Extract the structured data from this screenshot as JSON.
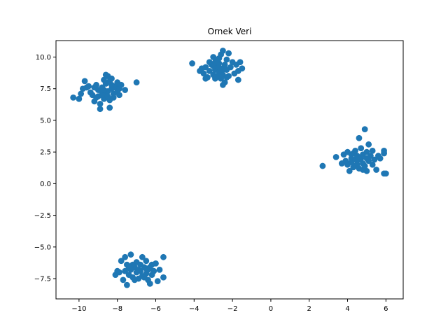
{
  "chart_data": {
    "type": "scatter",
    "title": "Ornek Veri",
    "xlabel": "",
    "ylabel": "",
    "xlim": [
      -11.2,
      6.9
    ],
    "ylim": [
      -9.1,
      11.3
    ],
    "x_ticks": [
      -10,
      -8,
      -6,
      -4,
      -2,
      0,
      2,
      4,
      6
    ],
    "x_tick_labels": [
      "−10",
      "−8",
      "−6",
      "−4",
      "−2",
      "0",
      "2",
      "4",
      "6"
    ],
    "y_ticks": [
      -7.5,
      -5.0,
      -2.5,
      0.0,
      2.5,
      5.0,
      7.5,
      10.0
    ],
    "y_tick_labels": [
      "−7.5",
      "−5.0",
      "−2.5",
      "0.0",
      "2.5",
      "5.0",
      "7.5",
      "10.0"
    ],
    "grid": false,
    "marker_color": "#1f77b4",
    "series": [
      {
        "points": [
          [
            -10.3,
            6.8
          ],
          [
            -10.0,
            6.7
          ],
          [
            -9.9,
            7.1
          ],
          [
            -9.8,
            7.5
          ],
          [
            -9.7,
            8.1
          ],
          [
            -9.6,
            7.6
          ],
          [
            -9.4,
            7.2
          ],
          [
            -9.3,
            7.0
          ],
          [
            -9.2,
            6.5
          ],
          [
            -9.2,
            7.6
          ],
          [
            -9.1,
            7.8
          ],
          [
            -9.0,
            7.4
          ],
          [
            -9.0,
            6.9
          ],
          [
            -8.9,
            6.3
          ],
          [
            -8.8,
            7.2
          ],
          [
            -8.8,
            7.6
          ],
          [
            -8.7,
            8.2
          ],
          [
            -8.7,
            6.7
          ],
          [
            -8.6,
            7.0
          ],
          [
            -8.6,
            7.9
          ],
          [
            -8.5,
            8.5
          ],
          [
            -8.5,
            7.3
          ],
          [
            -8.4,
            6.6
          ],
          [
            -8.4,
            8.1
          ],
          [
            -8.3,
            7.5
          ],
          [
            -8.3,
            8.3
          ],
          [
            -8.2,
            7.1
          ],
          [
            -8.2,
            6.8
          ],
          [
            -8.1,
            7.7
          ],
          [
            -8.0,
            7.3
          ],
          [
            -7.9,
            7.5
          ],
          [
            -7.9,
            7.0
          ],
          [
            -7.8,
            7.8
          ],
          [
            -7.6,
            7.4
          ],
          [
            -8.4,
            6.0
          ],
          [
            -8.9,
            5.9
          ],
          [
            -7.0,
            8.0
          ],
          [
            -8.6,
            8.6
          ],
          [
            -8.3,
            7.8
          ],
          [
            -8.8,
            7.0
          ],
          [
            -9.5,
            7.7
          ],
          [
            -8.0,
            8.0
          ],
          [
            -8.5,
            6.9
          ],
          [
            -8.7,
            7.4
          ],
          [
            -9.1,
            6.8
          ],
          [
            -8.2,
            7.6
          ]
        ]
      },
      {
        "points": [
          [
            -4.1,
            9.5
          ],
          [
            -3.7,
            8.9
          ],
          [
            -3.6,
            9.1
          ],
          [
            -3.5,
            8.7
          ],
          [
            -3.4,
            9.2
          ],
          [
            -3.3,
            8.4
          ],
          [
            -3.2,
            9.6
          ],
          [
            -3.2,
            8.9
          ],
          [
            -3.1,
            9.4
          ],
          [
            -3.0,
            8.6
          ],
          [
            -3.0,
            10.0
          ],
          [
            -2.9,
            9.0
          ],
          [
            -2.9,
            8.3
          ],
          [
            -2.8,
            9.8
          ],
          [
            -2.8,
            9.3
          ],
          [
            -2.7,
            8.8
          ],
          [
            -2.7,
            9.5
          ],
          [
            -2.6,
            10.2
          ],
          [
            -2.6,
            9.1
          ],
          [
            -2.5,
            8.6
          ],
          [
            -2.5,
            10.5
          ],
          [
            -2.4,
            9.4
          ],
          [
            -2.4,
            8.0
          ],
          [
            -2.3,
            9.8
          ],
          [
            -2.3,
            9.0
          ],
          [
            -2.2,
            8.5
          ],
          [
            -2.2,
            10.3
          ],
          [
            -2.1,
            9.2
          ],
          [
            -2.0,
            9.6
          ],
          [
            -1.9,
            8.7
          ],
          [
            -1.8,
            9.4
          ],
          [
            -1.7,
            8.9
          ],
          [
            -1.7,
            8.2
          ],
          [
            -1.6,
            9.6
          ],
          [
            -1.5,
            9.1
          ],
          [
            -3.4,
            8.3
          ],
          [
            -2.5,
            7.8
          ],
          [
            -2.6,
            8.3
          ],
          [
            -2.7,
            9.9
          ],
          [
            -3.0,
            9.3
          ],
          [
            -2.3,
            8.4
          ],
          [
            -2.9,
            9.6
          ],
          [
            -2.5,
            9.0
          ],
          [
            -2.8,
            8.5
          ]
        ]
      },
      {
        "points": [
          [
            2.7,
            1.4
          ],
          [
            3.4,
            2.1
          ],
          [
            3.7,
            1.6
          ],
          [
            3.8,
            2.3
          ],
          [
            3.9,
            1.8
          ],
          [
            4.0,
            2.5
          ],
          [
            4.0,
            1.5
          ],
          [
            4.1,
            1.0
          ],
          [
            4.2,
            2.0
          ],
          [
            4.2,
            1.7
          ],
          [
            4.3,
            2.4
          ],
          [
            4.3,
            1.3
          ],
          [
            4.4,
            1.9
          ],
          [
            4.4,
            2.6
          ],
          [
            4.5,
            1.5
          ],
          [
            4.5,
            2.2
          ],
          [
            4.6,
            3.6
          ],
          [
            4.6,
            1.2
          ],
          [
            4.7,
            2.0
          ],
          [
            4.7,
            2.8
          ],
          [
            4.8,
            1.6
          ],
          [
            4.8,
            2.3
          ],
          [
            4.9,
            1.4
          ],
          [
            4.9,
            4.3
          ],
          [
            5.0,
            2.5
          ],
          [
            5.0,
            1.0
          ],
          [
            5.1,
            1.8
          ],
          [
            5.1,
            3.1
          ],
          [
            5.2,
            2.2
          ],
          [
            5.3,
            1.5
          ],
          [
            5.3,
            2.6
          ],
          [
            5.4,
            1.9
          ],
          [
            5.5,
            1.1
          ],
          [
            5.6,
            2.2
          ],
          [
            5.7,
            2.0
          ],
          [
            5.9,
            2.4
          ],
          [
            5.9,
            2.6
          ],
          [
            5.9,
            0.8
          ],
          [
            6.0,
            0.8
          ],
          [
            4.4,
            1.4
          ],
          [
            4.6,
            1.9
          ],
          [
            4.2,
            2.3
          ],
          [
            5.0,
            2.0
          ],
          [
            4.8,
            1.1
          ]
        ]
      },
      {
        "points": [
          [
            -8.1,
            -7.2
          ],
          [
            -8.0,
            -6.9
          ],
          [
            -7.8,
            -6.1
          ],
          [
            -7.7,
            -7.6
          ],
          [
            -7.6,
            -5.8
          ],
          [
            -7.6,
            -6.9
          ],
          [
            -7.5,
            -8.0
          ],
          [
            -7.5,
            -6.4
          ],
          [
            -7.4,
            -7.2
          ],
          [
            -7.3,
            -5.6
          ],
          [
            -7.3,
            -6.8
          ],
          [
            -7.2,
            -7.4
          ],
          [
            -7.1,
            -6.6
          ],
          [
            -7.0,
            -6.2
          ],
          [
            -7.0,
            -7.0
          ],
          [
            -6.9,
            -7.5
          ],
          [
            -6.8,
            -6.4
          ],
          [
            -6.8,
            -6.9
          ],
          [
            -6.7,
            -5.8
          ],
          [
            -6.7,
            -7.3
          ],
          [
            -6.6,
            -6.6
          ],
          [
            -6.5,
            -7.1
          ],
          [
            -6.5,
            -6.1
          ],
          [
            -6.4,
            -7.6
          ],
          [
            -6.4,
            -6.8
          ],
          [
            -6.3,
            -7.9
          ],
          [
            -6.2,
            -6.4
          ],
          [
            -6.2,
            -7.2
          ],
          [
            -6.1,
            -6.9
          ],
          [
            -6.0,
            -6.3
          ],
          [
            -5.9,
            -7.7
          ],
          [
            -5.8,
            -6.8
          ],
          [
            -5.6,
            -5.8
          ],
          [
            -5.6,
            -7.4
          ],
          [
            -7.9,
            -7.0
          ],
          [
            -7.2,
            -6.4
          ],
          [
            -6.9,
            -6.8
          ],
          [
            -6.6,
            -7.4
          ],
          [
            -7.1,
            -7.6
          ],
          [
            -6.5,
            -6.7
          ],
          [
            -6.3,
            -6.6
          ],
          [
            -7.4,
            -6.6
          ]
        ]
      }
    ]
  }
}
